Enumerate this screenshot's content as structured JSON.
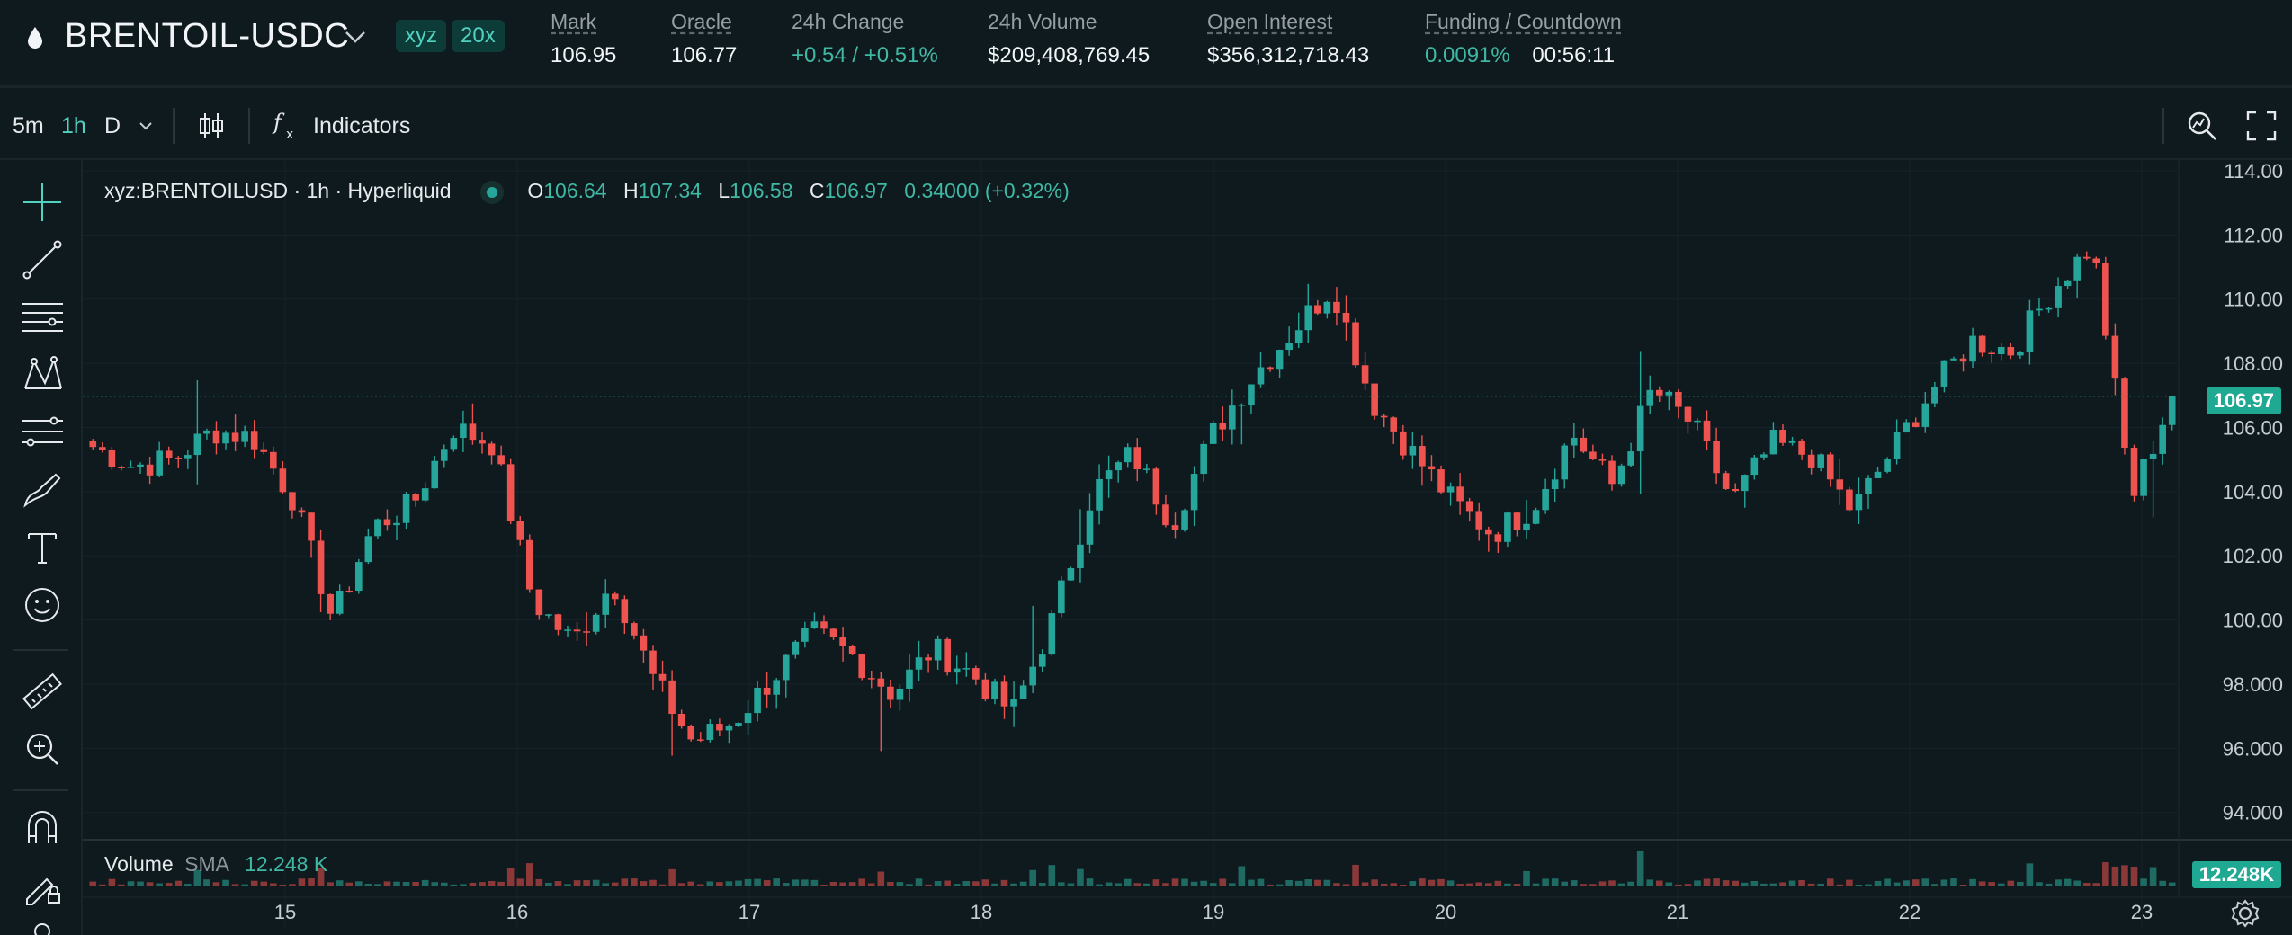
{
  "header": {
    "symbol": "BRENTOIL-USDC",
    "badges": [
      "xyz",
      "20x"
    ],
    "stats": [
      {
        "label": "Mark",
        "value": "106.95"
      },
      {
        "label": "Oracle",
        "value": "106.77"
      },
      {
        "label": "24h Change",
        "value": "+0.54 / +0.51%"
      },
      {
        "label": "24h Volume",
        "value": "$209,408,769.45"
      },
      {
        "label": "Open Interest",
        "value": "$356,312,718.43"
      },
      {
        "label": "Funding / Countdown",
        "value": "0.0091%",
        "value2": "00:56:11"
      }
    ]
  },
  "toolbar": {
    "timeframes": [
      "5m",
      "1h",
      "D"
    ],
    "active_timeframe": "1h",
    "indicators_label": "Indicators"
  },
  "sidebar_tools": [
    "crosshair-icon",
    "trend-line-icon",
    "horizontal-lines-icon",
    "pattern-icon",
    "fib-icon",
    "brush-icon",
    "text-icon",
    "emoji-icon",
    "ruler-icon",
    "zoom-in-icon",
    "magnet-icon",
    "lock-draw-icon"
  ],
  "legend": {
    "title": "xyz:BRENTOILUSD · 1h · Hyperliquid",
    "o_label": "O",
    "o": "106.64",
    "h_label": "H",
    "h": "107.34",
    "l_label": "L",
    "l": "106.58",
    "c_label": "C",
    "c": "106.97",
    "change": "0.34000 (+0.32%)"
  },
  "volume_legend": {
    "label": "Volume",
    "sma": "SMA",
    "value": "12.248 K"
  },
  "price_tags": {
    "last": "106.97",
    "volume": "12.248K"
  },
  "colors": {
    "up": "#26a69a",
    "down": "#ef5350",
    "accent": "#50d2c1",
    "bg": "#0f1a1f"
  },
  "chart_data": {
    "type": "candlestick",
    "interval": "1h",
    "y_ticks": [
      "114.00",
      "112.00",
      "110.00",
      "108.00",
      "106.00",
      "104.00",
      "102.00",
      "100.00",
      "98.000",
      "96.000",
      "94.000"
    ],
    "x_ticks": [
      "15",
      "16",
      "17",
      "18",
      "19",
      "20",
      "21",
      "22",
      "23"
    ],
    "ylim": [
      93.6,
      114.0
    ],
    "last_price": 106.97,
    "series": [
      {
        "name": "BRENTOILUSD",
        "anchor_closes": [
          105.4,
          104.8,
          105.0,
          105.9,
          105.7,
          103.8,
          100.0,
          102.9,
          103.6,
          106.0,
          105.5,
          100.6,
          99.3,
          101.2,
          98.2,
          96.2,
          96.8,
          98.2,
          99.6,
          98.9,
          97.7,
          99.1,
          98.3,
          97.1,
          100.0,
          104.0,
          105.2,
          103.0,
          105.8,
          107.6,
          109.0,
          110.4,
          106.8,
          105.2,
          103.7,
          102.7,
          103.5,
          105.8,
          104.2,
          107.2,
          106.1,
          103.7,
          105.5,
          105.1,
          103.4,
          105.3,
          107.2,
          108.7,
          108.4,
          110.3,
          111.7,
          103.8,
          106.97
        ]
      }
    ]
  }
}
